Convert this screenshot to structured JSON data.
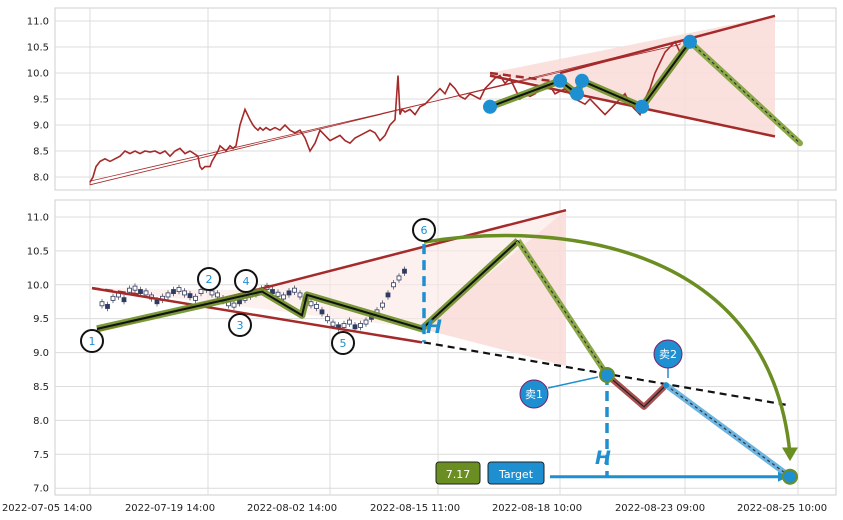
{
  "chart_data": [
    {
      "type": "line",
      "panel": "top",
      "ylim": [
        7.75,
        11.25
      ],
      "y_ticks": [
        "8.0",
        "8.5",
        "9.0",
        "9.5",
        "10.0",
        "10.5",
        "11.0"
      ],
      "grid": true,
      "series": [
        {
          "color": "#a52a2a",
          "x": [
            0,
            3,
            6,
            10,
            15,
            20,
            25,
            30,
            35,
            40,
            45,
            50,
            55,
            60,
            65,
            70,
            75,
            80,
            85,
            90,
            95,
            100,
            104,
            108,
            110,
            112,
            115,
            118,
            120,
            122,
            125,
            128,
            130,
            133,
            136,
            140,
            143,
            146,
            150,
            155,
            160,
            163,
            165,
            168,
            170,
            173,
            176,
            180,
            185,
            190,
            195,
            200,
            205,
            210,
            215,
            220,
            225,
            230,
            235,
            240,
            245,
            250,
            255,
            260,
            265,
            270,
            275,
            280,
            285,
            290,
            295,
            300,
            305,
            308,
            310,
            312,
            315,
            320,
            325,
            330,
            335,
            340,
            345,
            350,
            355,
            360,
            365,
            370,
            375,
            380,
            385,
            390,
            395,
            400,
            405,
            410,
            415,
            420,
            425,
            430,
            435,
            440,
            445,
            450,
            455,
            460,
            465,
            470,
            475,
            480,
            485,
            490,
            495,
            500,
            505,
            510,
            515,
            520,
            525,
            530,
            535,
            540,
            545,
            550,
            555,
            560,
            565,
            570,
            575,
            580,
            585,
            590,
            595,
            598,
            600,
            603
          ],
          "y": [
            7.9,
            8.0,
            8.2,
            8.3,
            8.35,
            8.3,
            8.35,
            8.4,
            8.5,
            8.45,
            8.5,
            8.45,
            8.5,
            8.48,
            8.5,
            8.45,
            8.5,
            8.4,
            8.5,
            8.55,
            8.45,
            8.5,
            8.45,
            8.4,
            8.2,
            8.15,
            8.2,
            8.2,
            8.2,
            8.3,
            8.4,
            8.5,
            8.6,
            8.55,
            8.5,
            8.6,
            8.55,
            8.6,
            9.0,
            9.3,
            9.1,
            9.0,
            8.95,
            8.9,
            8.95,
            8.9,
            8.95,
            8.9,
            8.95,
            8.9,
            9.0,
            8.9,
            8.85,
            8.9,
            8.75,
            8.5,
            8.65,
            8.9,
            8.8,
            8.7,
            8.75,
            8.8,
            8.7,
            8.65,
            8.75,
            8.8,
            8.85,
            8.9,
            8.85,
            8.7,
            8.8,
            9.0,
            9.1,
            9.95,
            9.2,
            9.3,
            9.25,
            9.3,
            9.2,
            9.35,
            9.4,
            9.5,
            9.6,
            9.7,
            9.6,
            9.8,
            9.7,
            9.55,
            9.5,
            9.6,
            9.55,
            9.5,
            9.7,
            9.8,
            9.9,
            9.95,
            9.8,
            9.9,
            9.7,
            9.5,
            9.6,
            9.55,
            9.6,
            9.7,
            9.8,
            9.75,
            9.6,
            9.65,
            9.7,
            9.6,
            9.5,
            9.45,
            9.4,
            9.5,
            9.4,
            9.3,
            9.2,
            9.3,
            9.4,
            9.5,
            9.6,
            9.4,
            9.3,
            9.2,
            9.5,
            9.7,
            10.0,
            10.2,
            10.4,
            10.5,
            10.6,
            10.4,
            10.45,
            10.5,
            10.55,
            10.6
          ]
        }
      ],
      "overlay": {
        "pivots": [
          [
            400,
            9.35
          ],
          [
            470,
            9.85
          ],
          [
            487,
            9.6
          ],
          [
            492,
            9.85
          ],
          [
            552,
            9.35
          ],
          [
            600,
            10.6
          ]
        ],
        "projection_end": [
          710,
          8.65
        ],
        "fill_color": "#f9dcd8",
        "pivot_color": "#1e8fd0",
        "wave_color": "#6b8e23"
      }
    },
    {
      "type": "candlestick",
      "panel": "bottom",
      "ylim": [
        6.9,
        11.25
      ],
      "y_ticks": [
        "7.0",
        "7.5",
        "8.0",
        "8.5",
        "9.0",
        "9.5",
        "10.0",
        "10.5",
        "11.0"
      ],
      "x_ticks": [
        "2022-07-05 14:00",
        "2022-07-19 14:00",
        "2022-08-02 14:00",
        "2022-08-15 11:00",
        "2022-08-18 10:00",
        "2022-08-23 09:00",
        "2022-08-25 10:00"
      ],
      "grid": true,
      "pivots": [
        {
          "label": "1",
          "x": 5,
          "y": 9.35
        },
        {
          "label": "2",
          "x": 170,
          "y": 9.9
        },
        {
          "label": "3",
          "x": 210,
          "y": 9.55
        },
        {
          "label": "4",
          "x": 215,
          "y": 9.85
        },
        {
          "label": "5",
          "x": 330,
          "y": 9.35
        },
        {
          "label": "6",
          "x": 426,
          "y": 10.65
        }
      ],
      "sell_points": [
        {
          "label": "卖1",
          "x": 607,
          "y": 8.67
        },
        {
          "label": "卖2",
          "x": 666,
          "y": 8.52
        }
      ],
      "target": {
        "value": "7.17",
        "label": "Target",
        "y": 7.17
      },
      "h_label": "H",
      "candles_y": [
        9.72,
        9.68,
        9.8,
        9.85,
        9.78,
        9.92,
        9.95,
        9.9,
        9.88,
        9.82,
        9.75,
        9.8,
        9.85,
        9.9,
        9.93,
        9.88,
        9.84,
        9.8,
        9.9,
        9.95,
        9.88,
        9.85,
        9.78,
        9.72,
        9.7,
        9.75,
        9.8,
        9.85,
        9.88,
        9.92,
        9.96,
        9.9,
        9.86,
        9.82,
        9.88,
        9.92,
        9.85,
        9.78,
        9.72,
        9.68,
        9.6,
        9.5,
        9.42,
        9.38,
        9.4,
        9.45,
        9.38,
        9.4,
        9.45,
        9.52,
        9.6,
        9.7,
        9.85,
        10.0,
        10.1,
        10.2
      ]
    }
  ]
}
